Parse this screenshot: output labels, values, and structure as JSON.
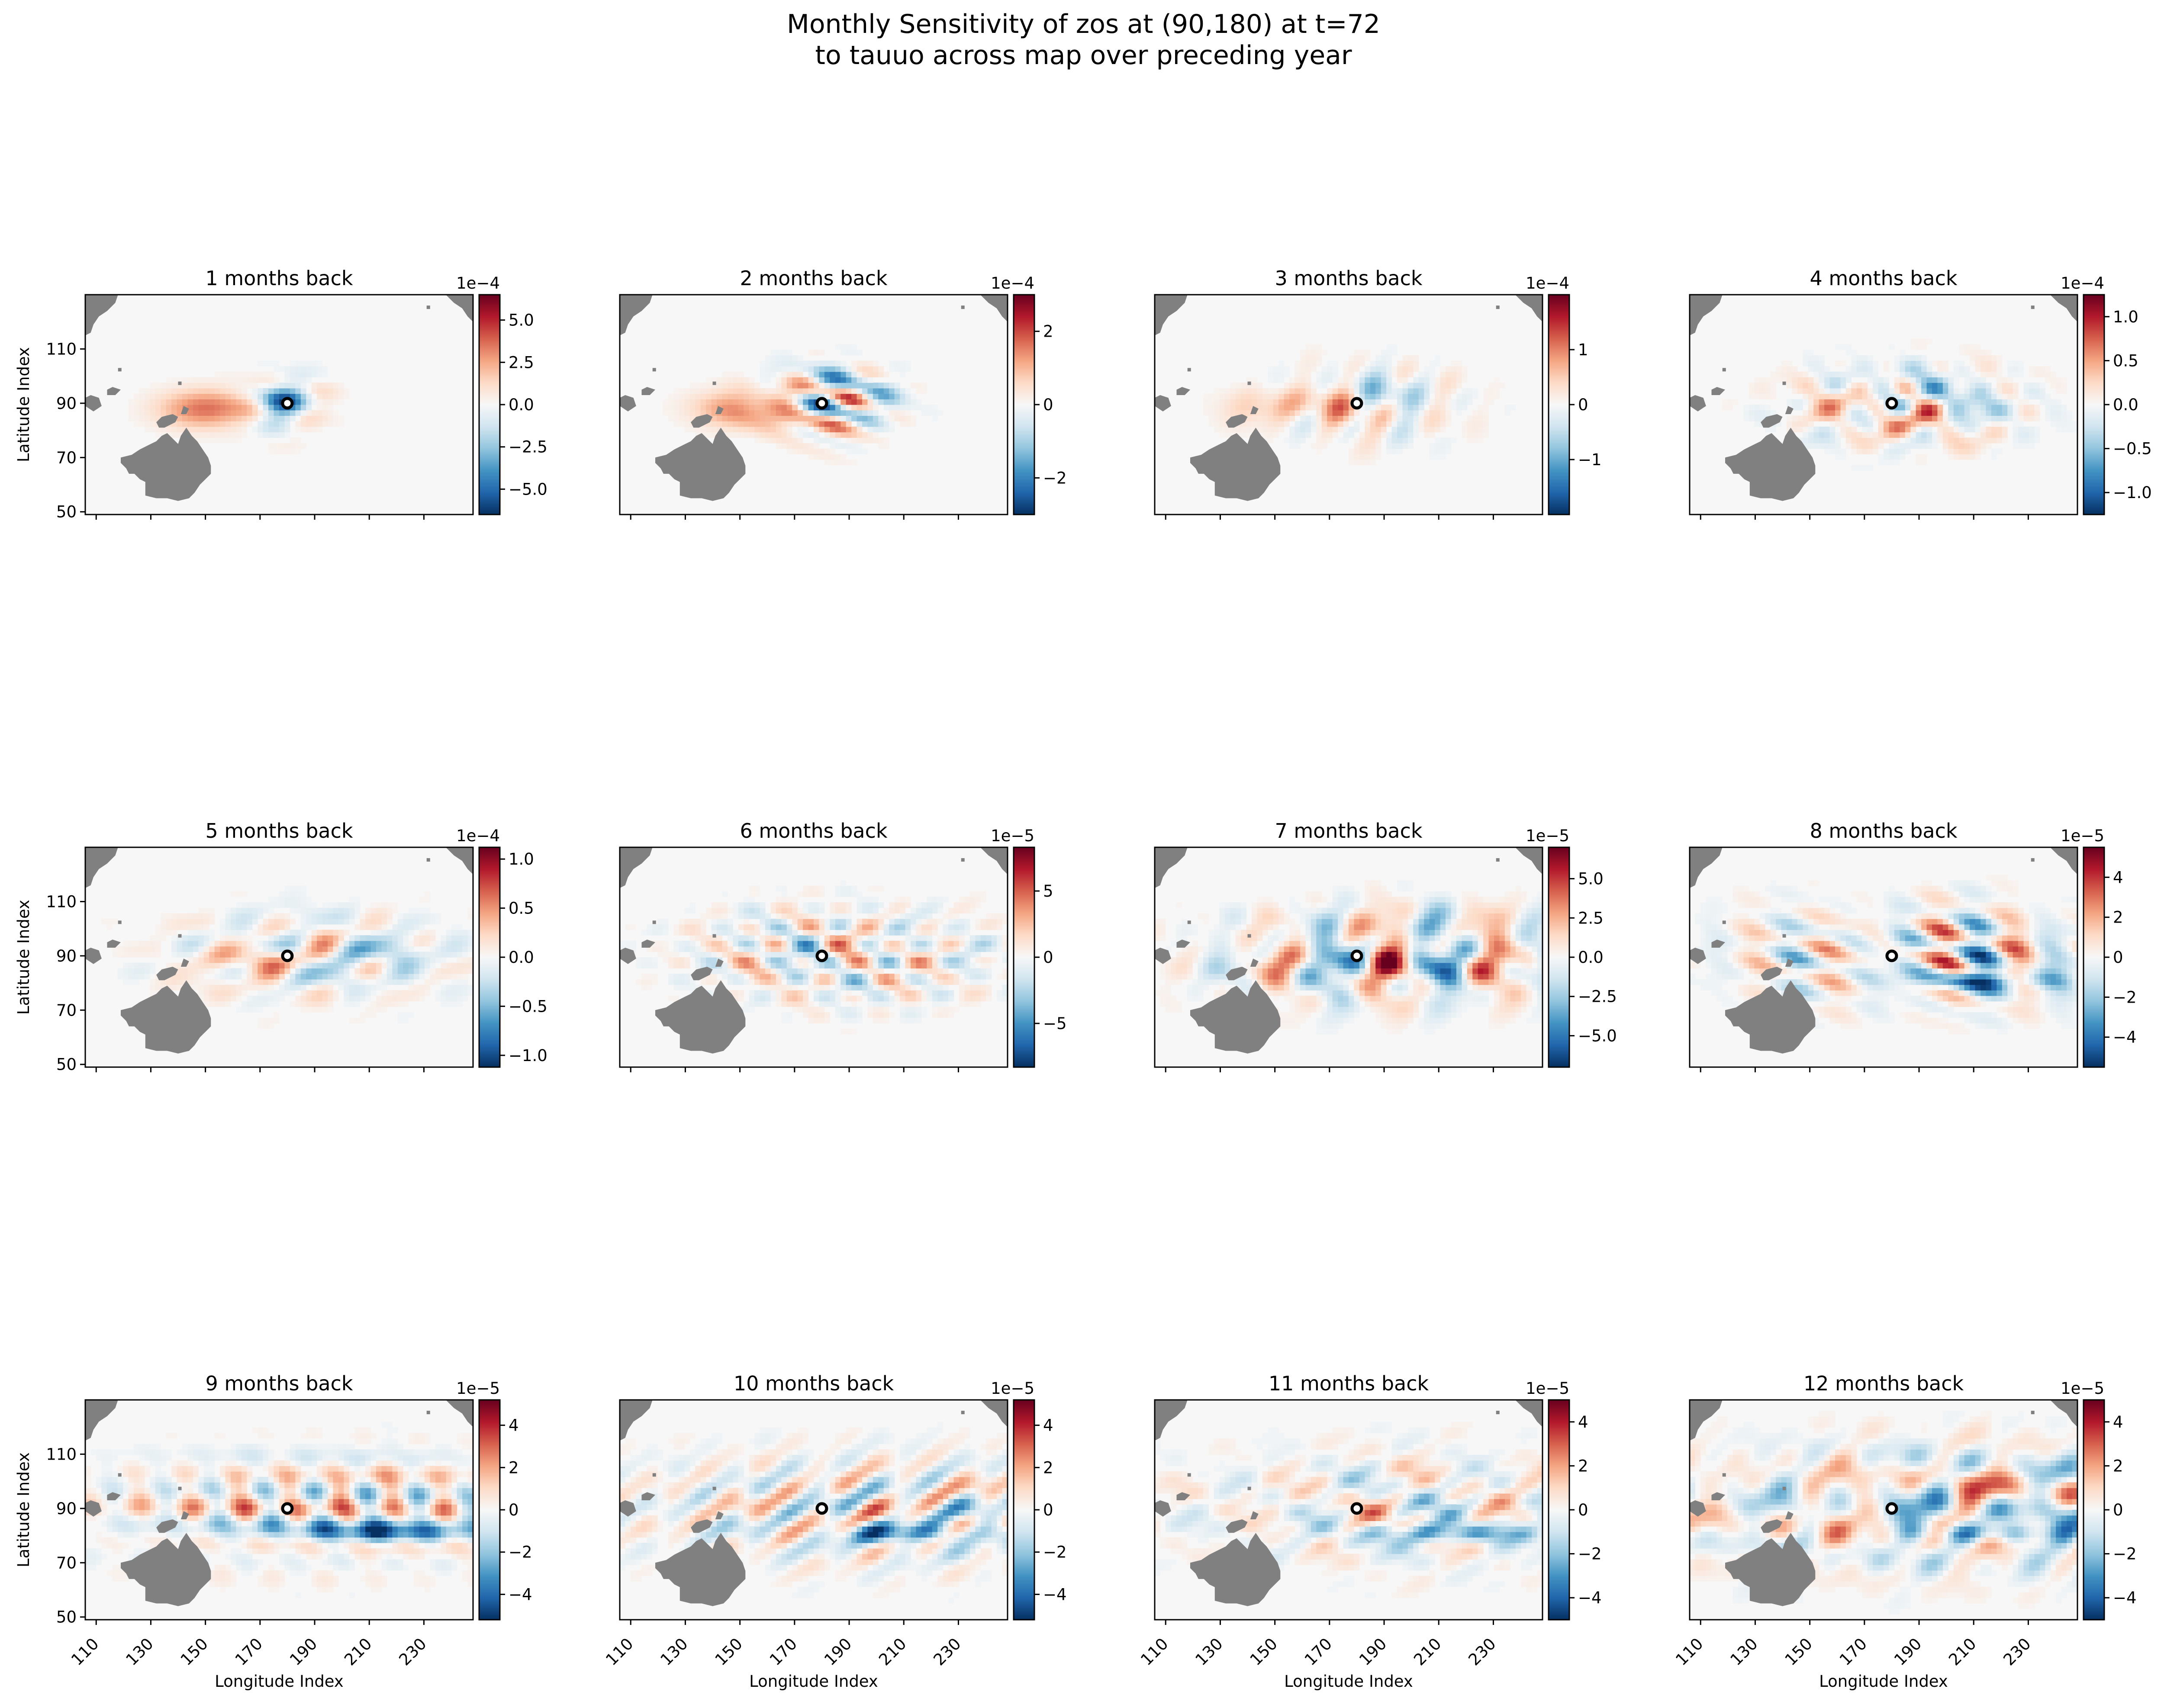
{
  "figure": {
    "title_line1": "Monthly Sensitivity of zos at (90,180) at t=72",
    "title_line2": "to tauuo across map over preceding year"
  },
  "colors": {
    "land": "#808080",
    "cmap_low": "#053061",
    "cmap_mid": "#f7f7f7",
    "cmap_high": "#67001f",
    "marker": "#000000"
  },
  "chart_data": [
    {
      "type": "heatmap",
      "title": "1 months back",
      "xlabel": "",
      "ylabel": "Latitude Index",
      "x_ticks": [],
      "y_ticks": [
        "50",
        "70",
        "90",
        "110"
      ],
      "xlim": [
        106,
        248
      ],
      "ylim": [
        49,
        130
      ],
      "colorbar": {
        "exponent": "1e−4",
        "range": [
          -6.5,
          6.5
        ],
        "ticks": [
          -5,
          -2.5,
          0,
          2.5,
          5
        ],
        "tick_labels": [
          "−5.0",
          "−2.5",
          "0.0",
          "2.5",
          "5.0"
        ]
      },
      "marker": [
        180,
        90
      ]
    },
    {
      "type": "heatmap",
      "title": "2 months back",
      "xlabel": "",
      "ylabel": "",
      "x_ticks": [],
      "y_ticks": [],
      "xlim": [
        106,
        248
      ],
      "ylim": [
        49,
        130
      ],
      "colorbar": {
        "exponent": "1e−4",
        "range": [
          -3,
          3
        ],
        "ticks": [
          -2,
          0,
          2
        ],
        "tick_labels": [
          "−2",
          "0",
          "2"
        ]
      },
      "marker": [
        180,
        90
      ]
    },
    {
      "type": "heatmap",
      "title": "3 months back",
      "xlabel": "",
      "ylabel": "",
      "x_ticks": [],
      "y_ticks": [],
      "xlim": [
        106,
        248
      ],
      "ylim": [
        49,
        130
      ],
      "colorbar": {
        "exponent": "1e−4",
        "range": [
          -2,
          2
        ],
        "ticks": [
          -1,
          0,
          1
        ],
        "tick_labels": [
          "−1",
          "0",
          "1"
        ]
      },
      "marker": [
        180,
        90
      ]
    },
    {
      "type": "heatmap",
      "title": "4 months back",
      "xlabel": "",
      "ylabel": "",
      "x_ticks": [],
      "y_ticks": [],
      "xlim": [
        106,
        248
      ],
      "ylim": [
        49,
        130
      ],
      "colorbar": {
        "exponent": "1e−4",
        "range": [
          -1.25,
          1.25
        ],
        "ticks": [
          -1,
          -0.5,
          0,
          0.5,
          1
        ],
        "tick_labels": [
          "−1.0",
          "−0.5",
          "0.0",
          "0.5",
          "1.0"
        ]
      },
      "marker": [
        180,
        90
      ]
    },
    {
      "type": "heatmap",
      "title": "5 months back",
      "xlabel": "",
      "ylabel": "Latitude Index",
      "x_ticks": [],
      "y_ticks": [
        "50",
        "70",
        "90",
        "110"
      ],
      "xlim": [
        106,
        248
      ],
      "ylim": [
        49,
        130
      ],
      "colorbar": {
        "exponent": "1e−4",
        "range": [
          -1.12,
          1.12
        ],
        "ticks": [
          -1,
          -0.5,
          0,
          0.5,
          1
        ],
        "tick_labels": [
          "−1.0",
          "−0.5",
          "0.0",
          "0.5",
          "1.0"
        ]
      },
      "marker": [
        180,
        90
      ]
    },
    {
      "type": "heatmap",
      "title": "6 months back",
      "xlabel": "",
      "ylabel": "",
      "x_ticks": [],
      "y_ticks": [],
      "xlim": [
        106,
        248
      ],
      "ylim": [
        49,
        130
      ],
      "colorbar": {
        "exponent": "1e−5",
        "range": [
          -8.3,
          8.3
        ],
        "ticks": [
          -5,
          0,
          5
        ],
        "tick_labels": [
          "−5",
          "0",
          "5"
        ]
      },
      "marker": [
        180,
        90
      ]
    },
    {
      "type": "heatmap",
      "title": "7 months back",
      "xlabel": "",
      "ylabel": "",
      "x_ticks": [],
      "y_ticks": [],
      "xlim": [
        106,
        248
      ],
      "ylim": [
        49,
        130
      ],
      "colorbar": {
        "exponent": "1e−5",
        "range": [
          -7,
          7
        ],
        "ticks": [
          -5,
          -2.5,
          0,
          2.5,
          5
        ],
        "tick_labels": [
          "−5.0",
          "−2.5",
          "0.0",
          "2.5",
          "5.0"
        ]
      },
      "marker": [
        180,
        90
      ]
    },
    {
      "type": "heatmap",
      "title": "8 months back",
      "xlabel": "",
      "ylabel": "",
      "x_ticks": [],
      "y_ticks": [],
      "xlim": [
        106,
        248
      ],
      "ylim": [
        49,
        130
      ],
      "colorbar": {
        "exponent": "1e−5",
        "range": [
          -5.5,
          5.5
        ],
        "ticks": [
          -4,
          -2,
          0,
          2,
          4
        ],
        "tick_labels": [
          "−4",
          "−2",
          "0",
          "2",
          "4"
        ]
      },
      "marker": [
        180,
        90
      ]
    },
    {
      "type": "heatmap",
      "title": "9 months back",
      "xlabel": "Longitude Index",
      "ylabel": "Latitude Index",
      "x_ticks": [
        "110",
        "130",
        "150",
        "170",
        "190",
        "210",
        "230"
      ],
      "y_ticks": [
        "50",
        "70",
        "90",
        "110"
      ],
      "xlim": [
        106,
        248
      ],
      "ylim": [
        49,
        130
      ],
      "colorbar": {
        "exponent": "1e−5",
        "range": [
          -5.2,
          5.2
        ],
        "ticks": [
          -4,
          -2,
          0,
          2,
          4
        ],
        "tick_labels": [
          "−4",
          "−2",
          "0",
          "2",
          "4"
        ]
      },
      "marker": [
        180,
        90
      ]
    },
    {
      "type": "heatmap",
      "title": "10 months back",
      "xlabel": "Longitude Index",
      "ylabel": "",
      "x_ticks": [
        "110",
        "130",
        "150",
        "170",
        "190",
        "210",
        "230"
      ],
      "y_ticks": [],
      "xlim": [
        106,
        248
      ],
      "ylim": [
        49,
        130
      ],
      "colorbar": {
        "exponent": "1e−5",
        "range": [
          -5.2,
          5.2
        ],
        "ticks": [
          -4,
          -2,
          0,
          2,
          4
        ],
        "tick_labels": [
          "−4",
          "−2",
          "0",
          "2",
          "4"
        ]
      },
      "marker": [
        180,
        90
      ]
    },
    {
      "type": "heatmap",
      "title": "11 months back",
      "xlabel": "Longitude Index",
      "ylabel": "",
      "x_ticks": [
        "110",
        "130",
        "150",
        "170",
        "190",
        "210",
        "230"
      ],
      "y_ticks": [],
      "xlim": [
        106,
        248
      ],
      "ylim": [
        49,
        130
      ],
      "colorbar": {
        "exponent": "1e−5",
        "range": [
          -5,
          5
        ],
        "ticks": [
          -4,
          -2,
          0,
          2,
          4
        ],
        "tick_labels": [
          "−4",
          "−2",
          "0",
          "2",
          "4"
        ]
      },
      "marker": [
        180,
        90
      ]
    },
    {
      "type": "heatmap",
      "title": "12 months back",
      "xlabel": "Longitude Index",
      "ylabel": "",
      "x_ticks": [
        "110",
        "130",
        "150",
        "170",
        "190",
        "210",
        "230"
      ],
      "y_ticks": [],
      "xlim": [
        106,
        248
      ],
      "ylim": [
        49,
        130
      ],
      "colorbar": {
        "exponent": "1e−5",
        "range": [
          -5,
          5
        ],
        "ticks": [
          -4,
          -2,
          0,
          2,
          4
        ],
        "tick_labels": [
          "−4",
          "−2",
          "0",
          "2",
          "4"
        ]
      },
      "marker": [
        180,
        90
      ]
    }
  ]
}
